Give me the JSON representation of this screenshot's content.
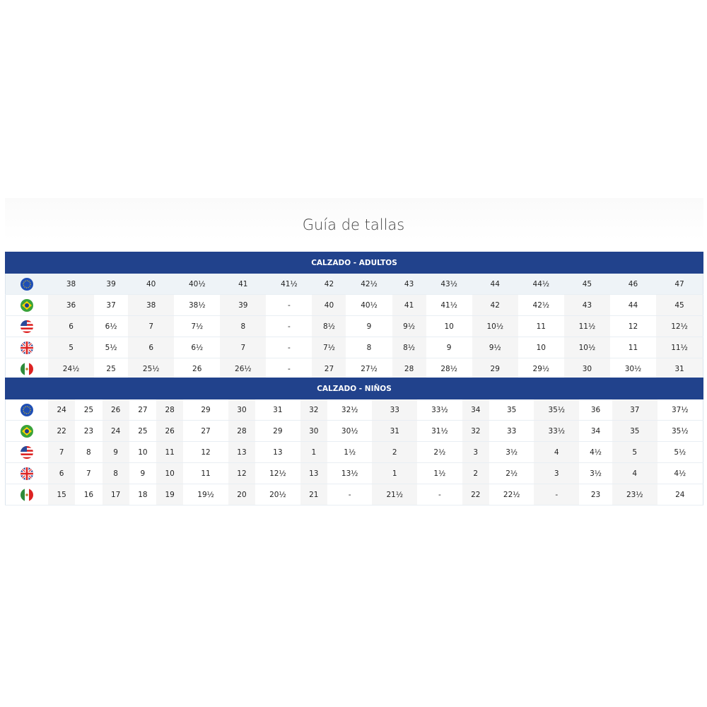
{
  "title": "Guía de tallas",
  "flags": [
    "eu-flag-icon",
    "brazil-flag-icon",
    "usa-flag-icon",
    "uk-flag-icon",
    "mexico-flag-icon"
  ],
  "colors": {
    "header": "#21428c"
  },
  "adults": {
    "heading": "CALZADO - ADULTOS",
    "rows": [
      [
        "38",
        "39",
        "40",
        "40½",
        "41",
        "41½",
        "42",
        "42½",
        "43",
        "43½",
        "44",
        "44½",
        "45",
        "46",
        "47"
      ],
      [
        "36",
        "37",
        "38",
        "38½",
        "39",
        "-",
        "40",
        "40½",
        "41",
        "41½",
        "42",
        "42½",
        "43",
        "44",
        "45"
      ],
      [
        "6",
        "6½",
        "7",
        "7½",
        "8",
        "-",
        "8½",
        "9",
        "9½",
        "10",
        "10½",
        "11",
        "11½",
        "12",
        "12½"
      ],
      [
        "5",
        "5½",
        "6",
        "6½",
        "7",
        "-",
        "7½",
        "8",
        "8½",
        "9",
        "9½",
        "10",
        "10½",
        "11",
        "11½"
      ],
      [
        "24½",
        "25",
        "25½",
        "26",
        "26½",
        "-",
        "27",
        "27½",
        "28",
        "28½",
        "29",
        "29½",
        "30",
        "30½",
        "31"
      ]
    ]
  },
  "kids": {
    "heading": "CALZADO - NIÑOS",
    "rows": [
      [
        "24",
        "25",
        "26",
        "27",
        "28",
        "29",
        "30",
        "31",
        "32",
        "32½",
        "33",
        "33½",
        "34",
        "35",
        "35½",
        "36",
        "37",
        "37½"
      ],
      [
        "22",
        "23",
        "24",
        "25",
        "26",
        "27",
        "28",
        "29",
        "30",
        "30½",
        "31",
        "31½",
        "32",
        "33",
        "33½",
        "34",
        "35",
        "35½"
      ],
      [
        "7",
        "8",
        "9",
        "10",
        "11",
        "12",
        "13",
        "13",
        "1",
        "1½",
        "2",
        "2½",
        "3",
        "3½",
        "4",
        "4½",
        "5",
        "5½"
      ],
      [
        "6",
        "7",
        "8",
        "9",
        "10",
        "11",
        "12",
        "12½",
        "13",
        "13½",
        "1",
        "1½",
        "2",
        "2½",
        "3",
        "3½",
        "4",
        "4½"
      ],
      [
        "15",
        "16",
        "17",
        "18",
        "19",
        "19½",
        "20",
        "20½",
        "21",
        "-",
        "21½",
        "-",
        "22",
        "22½",
        "-",
        "23",
        "23½",
        "24"
      ]
    ]
  }
}
